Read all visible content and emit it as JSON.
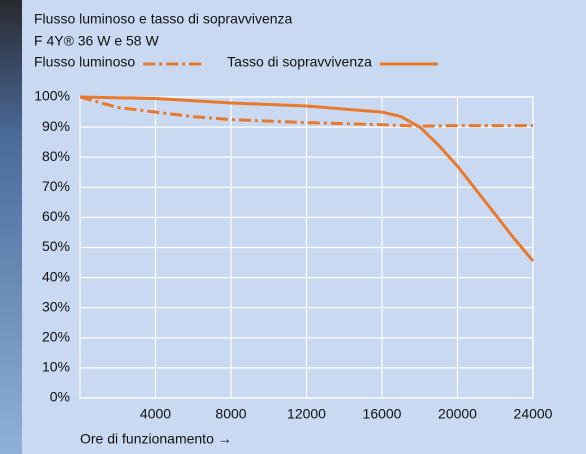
{
  "chart_data": {
    "type": "line",
    "title": "Flusso luminoso e tasso di sopravvivenza",
    "subtitle": "F 4Y® 36 W e 58 W",
    "x_label": "Ore di funzionamento →",
    "xlim": [
      0,
      24000
    ],
    "xticks": [
      4000,
      8000,
      12000,
      16000,
      20000,
      24000
    ],
    "ylim": [
      0,
      100
    ],
    "yticks": [
      {
        "value": 0,
        "label": "0%"
      },
      {
        "value": 10,
        "label": "10%"
      },
      {
        "value": 20,
        "label": "20%"
      },
      {
        "value": 30,
        "label": "30%"
      },
      {
        "value": 40,
        "label": "40%"
      },
      {
        "value": 50,
        "label": "50%"
      },
      {
        "value": 60,
        "label": "60%"
      },
      {
        "value": 70,
        "label": "70%"
      },
      {
        "value": 80,
        "label": "80%"
      },
      {
        "value": 90,
        "label": "90%"
      },
      {
        "value": 100,
        "label": "100%"
      }
    ],
    "grid": true,
    "series": [
      {
        "name": "Flusso luminoso",
        "color": "#e8792a",
        "style": "dashdot",
        "x": [
          0,
          2000,
          4000,
          6000,
          8000,
          12000,
          16000,
          18000,
          20000,
          24000
        ],
        "values": [
          100,
          96.5,
          95,
          93.5,
          92.5,
          91.5,
          90.8,
          90.3,
          90.5,
          90.5
        ]
      },
      {
        "name": "Tasso di sopravvivenza",
        "color": "#e8792a",
        "style": "solid",
        "x": [
          0,
          4000,
          8000,
          12000,
          16000,
          17000,
          18000,
          19000,
          20000,
          22000,
          23000,
          24000
        ],
        "values": [
          100,
          99.5,
          98,
          97,
          95,
          93.5,
          90,
          84,
          77,
          61,
          53,
          45.5
        ]
      }
    ]
  }
}
